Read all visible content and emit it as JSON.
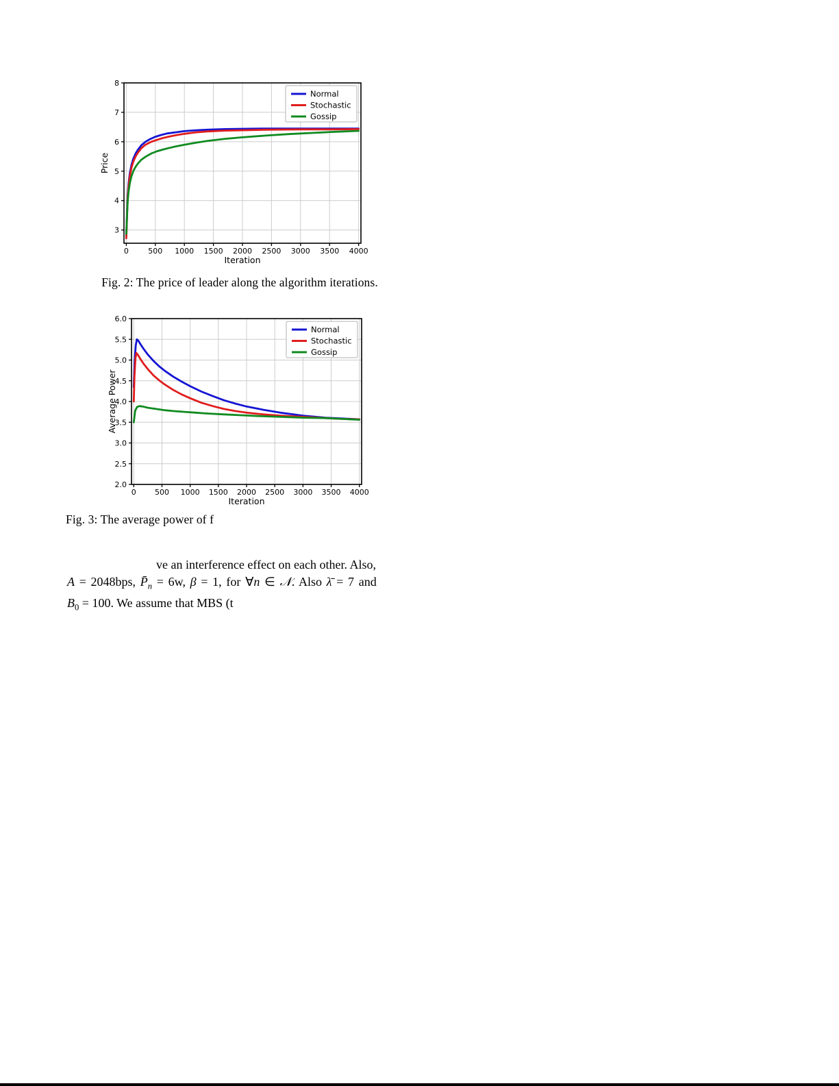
{
  "page": {
    "background_color": "#ffffff",
    "bottom_bar_color": "#000000"
  },
  "figure2": {
    "caption": "Fig. 2: The price of leader along the algorithm iterations."
  },
  "figure3": {
    "caption": "Fig. 3: The average power of f"
  },
  "paragraph": {
    "line1": [
      {
        "t": "ve an interference effect on each other. Also,",
        "s": ""
      }
    ],
    "line2": [
      {
        "t": "A",
        "s": "it"
      },
      {
        "t": " = 2048bps, ",
        "s": ""
      },
      {
        "t": "P̄",
        "s": "it"
      },
      {
        "t": "n",
        "s": "itsub"
      },
      {
        "t": " = 6w, ",
        "s": ""
      },
      {
        "t": "β",
        "s": "it"
      },
      {
        "t": " = 1, for ",
        "s": ""
      },
      {
        "t": "∀",
        "s": ""
      },
      {
        "t": "n",
        "s": "it"
      },
      {
        "t": " ∈ ",
        "s": ""
      },
      {
        "t": "𝒩",
        "s": "scr"
      },
      {
        "t": ". Also ",
        "s": ""
      },
      {
        "t": "λ̄",
        "s": "it"
      },
      {
        "t": " = 7 and",
        "s": ""
      }
    ],
    "line3": [
      {
        "t": "B",
        "s": "it"
      },
      {
        "t": "0",
        "s": "sub"
      },
      {
        "t": " = 100. We assume that MBS (t",
        "s": ""
      }
    ]
  },
  "chart_data": [
    {
      "type": "line",
      "title": "",
      "xlabel": "Iteration",
      "ylabel": "Price",
      "xlim": [
        -40,
        4040
      ],
      "ylim": [
        2.55,
        8
      ],
      "grid": true,
      "grid_color": "#cccccc",
      "legend_position": "upper right",
      "xticks": [
        0,
        500,
        1000,
        1500,
        2000,
        2500,
        3000,
        3500,
        4000
      ],
      "xtick_labels": [
        "0",
        "500",
        "1000",
        "1500",
        "2000",
        "2500",
        "3000",
        "3500",
        "4000"
      ],
      "yticks": [
        3,
        4,
        5,
        6,
        7,
        8
      ],
      "ytick_labels": [
        "3",
        "4",
        "5",
        "6",
        "7",
        "8"
      ],
      "series": [
        {
          "name": "Normal",
          "color": "#1515d3",
          "points": [
            [
              0,
              2.8
            ],
            [
              8,
              3.3
            ],
            [
              15,
              3.75
            ],
            [
              25,
              4.2
            ],
            [
              40,
              4.6
            ],
            [
              60,
              4.92
            ],
            [
              90,
              5.22
            ],
            [
              120,
              5.42
            ],
            [
              160,
              5.6
            ],
            [
              200,
              5.73
            ],
            [
              260,
              5.88
            ],
            [
              330,
              6.0
            ],
            [
              400,
              6.08
            ],
            [
              500,
              6.17
            ],
            [
              600,
              6.23
            ],
            [
              700,
              6.28
            ],
            [
              850,
              6.32
            ],
            [
              1000,
              6.36
            ],
            [
              1200,
              6.39
            ],
            [
              1400,
              6.41
            ],
            [
              1700,
              6.43
            ],
            [
              2000,
              6.44
            ],
            [
              2400,
              6.45
            ],
            [
              3000,
              6.45
            ],
            [
              3500,
              6.45
            ],
            [
              4000,
              6.45
            ]
          ]
        },
        {
          "name": "Stochastic",
          "color": "#e01d1d",
          "points": [
            [
              0,
              2.72
            ],
            [
              8,
              3.2
            ],
            [
              15,
              3.65
            ],
            [
              25,
              4.1
            ],
            [
              40,
              4.5
            ],
            [
              60,
              4.82
            ],
            [
              90,
              5.12
            ],
            [
              120,
              5.32
            ],
            [
              160,
              5.5
            ],
            [
              200,
              5.63
            ],
            [
              260,
              5.78
            ],
            [
              330,
              5.9
            ],
            [
              430,
              6.0
            ],
            [
              520,
              6.06
            ],
            [
              620,
              6.12
            ],
            [
              720,
              6.17
            ],
            [
              850,
              6.22
            ],
            [
              1000,
              6.27
            ],
            [
              1200,
              6.32
            ],
            [
              1400,
              6.35
            ],
            [
              1700,
              6.38
            ],
            [
              2000,
              6.39
            ],
            [
              2400,
              6.41
            ],
            [
              3000,
              6.42
            ],
            [
              3500,
              6.42
            ],
            [
              4000,
              6.43
            ]
          ]
        },
        {
          "name": "Gossip",
          "color": "#108a20",
          "points": [
            [
              0,
              2.87
            ],
            [
              8,
              3.25
            ],
            [
              15,
              3.6
            ],
            [
              25,
              3.98
            ],
            [
              40,
              4.32
            ],
            [
              60,
              4.58
            ],
            [
              90,
              4.83
            ],
            [
              120,
              5.0
            ],
            [
              160,
              5.15
            ],
            [
              200,
              5.26
            ],
            [
              260,
              5.39
            ],
            [
              330,
              5.49
            ],
            [
              430,
              5.6
            ],
            [
              520,
              5.67
            ],
            [
              620,
              5.73
            ],
            [
              720,
              5.78
            ],
            [
              850,
              5.84
            ],
            [
              1000,
              5.9
            ],
            [
              1200,
              5.97
            ],
            [
              1400,
              6.03
            ],
            [
              1700,
              6.1
            ],
            [
              2000,
              6.15
            ],
            [
              2400,
              6.21
            ],
            [
              2800,
              6.26
            ],
            [
              3200,
              6.3
            ],
            [
              3600,
              6.34
            ],
            [
              4000,
              6.37
            ]
          ]
        }
      ]
    },
    {
      "type": "line",
      "title": "",
      "xlabel": "Iteration",
      "ylabel": "Average Power",
      "xlim": [
        -40,
        4040
      ],
      "ylim": [
        2.0,
        6.0
      ],
      "grid": true,
      "grid_color": "#cccccc",
      "legend_position": "upper right",
      "xticks": [
        0,
        500,
        1000,
        1500,
        2000,
        2500,
        3000,
        3500,
        4000
      ],
      "xtick_labels": [
        "0",
        "500",
        "1000",
        "1500",
        "2000",
        "2500",
        "3000",
        "3500",
        "4000"
      ],
      "yticks": [
        2.0,
        2.5,
        3.0,
        3.5,
        4.0,
        4.5,
        5.0,
        5.5,
        6.0
      ],
      "ytick_labels": [
        "2.0",
        "2.5",
        "3.0",
        "3.5",
        "4.0",
        "4.5",
        "5.0",
        "5.5",
        "6.0"
      ],
      "series": [
        {
          "name": "Normal",
          "color": "#1515d3",
          "points": [
            [
              0,
              4.35
            ],
            [
              15,
              4.95
            ],
            [
              35,
              5.35
            ],
            [
              55,
              5.5
            ],
            [
              80,
              5.47
            ],
            [
              120,
              5.38
            ],
            [
              180,
              5.26
            ],
            [
              250,
              5.13
            ],
            [
              350,
              4.98
            ],
            [
              450,
              4.85
            ],
            [
              550,
              4.74
            ],
            [
              700,
              4.6
            ],
            [
              850,
              4.48
            ],
            [
              1000,
              4.37
            ],
            [
              1200,
              4.24
            ],
            [
              1400,
              4.13
            ],
            [
              1600,
              4.03
            ],
            [
              1800,
              3.95
            ],
            [
              2000,
              3.88
            ],
            [
              2300,
              3.8
            ],
            [
              2600,
              3.73
            ],
            [
              3000,
              3.66
            ],
            [
              3400,
              3.61
            ],
            [
              3700,
              3.59
            ],
            [
              4000,
              3.57
            ]
          ]
        },
        {
          "name": "Stochastic",
          "color": "#e01d1d",
          "points": [
            [
              0,
              4.0
            ],
            [
              12,
              4.6
            ],
            [
              30,
              5.05
            ],
            [
              48,
              5.17
            ],
            [
              75,
              5.12
            ],
            [
              120,
              5.02
            ],
            [
              180,
              4.9
            ],
            [
              250,
              4.78
            ],
            [
              350,
              4.63
            ],
            [
              450,
              4.51
            ],
            [
              550,
              4.41
            ],
            [
              700,
              4.28
            ],
            [
              850,
              4.17
            ],
            [
              1000,
              4.08
            ],
            [
              1200,
              3.97
            ],
            [
              1400,
              3.89
            ],
            [
              1600,
              3.82
            ],
            [
              1800,
              3.77
            ],
            [
              2000,
              3.73
            ],
            [
              2300,
              3.69
            ],
            [
              2600,
              3.66
            ],
            [
              3000,
              3.63
            ],
            [
              3400,
              3.6
            ],
            [
              3700,
              3.58
            ],
            [
              4000,
              3.57
            ]
          ]
        },
        {
          "name": "Gossip",
          "color": "#108a20",
          "points": [
            [
              0,
              3.5
            ],
            [
              25,
              3.78
            ],
            [
              60,
              3.87
            ],
            [
              100,
              3.89
            ],
            [
              160,
              3.88
            ],
            [
              250,
              3.85
            ],
            [
              400,
              3.82
            ],
            [
              550,
              3.79
            ],
            [
              700,
              3.77
            ],
            [
              900,
              3.75
            ],
            [
              1100,
              3.73
            ],
            [
              1300,
              3.71
            ],
            [
              1600,
              3.69
            ],
            [
              1900,
              3.67
            ],
            [
              2200,
              3.65
            ],
            [
              2600,
              3.63
            ],
            [
              3000,
              3.61
            ],
            [
              3400,
              3.6
            ],
            [
              3700,
              3.58
            ],
            [
              4000,
              3.56
            ]
          ]
        }
      ]
    }
  ]
}
